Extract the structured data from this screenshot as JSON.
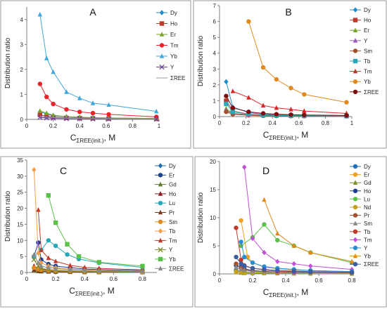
{
  "figure": {
    "panels": [
      "A",
      "B",
      "C",
      "D"
    ]
  },
  "chart_data": [
    {
      "id": "A",
      "type": "line",
      "panel_label": "A",
      "xlabel_main": "C",
      "xlabel_sub": "ΣREE(init.)",
      "xlabel_unit": ", M",
      "ylabel": "Distribution ratio",
      "xlim": [
        0,
        1
      ],
      "ylim": [
        0,
        4.5
      ],
      "xticks": [
        "0",
        "0.2",
        "0.4",
        "0.6",
        "0.8",
        "1"
      ],
      "yticks": [
        "0",
        "1",
        "2",
        "3",
        "4"
      ],
      "x": [
        0.1,
        0.15,
        0.2,
        0.3,
        0.4,
        0.5,
        0.62,
        0.98
      ],
      "series": [
        {
          "name": "Dy",
          "color": "#1f8dc8",
          "marker": "diamond",
          "values": [
            0.3,
            0.22,
            0.15,
            0.1,
            0.08,
            0.06,
            0.05,
            0.03
          ]
        },
        {
          "name": "Ho",
          "color": "#c0392b",
          "marker": "square",
          "values": [
            0.18,
            0.13,
            0.09,
            0.06,
            0.05,
            0.04,
            0.03,
            0.02
          ]
        },
        {
          "name": "Er",
          "color": "#7aa329",
          "marker": "triangle",
          "values": [
            0.34,
            0.25,
            0.17,
            0.11,
            0.09,
            0.07,
            0.06,
            0.04
          ]
        },
        {
          "name": "Tm",
          "color": "#e8232a",
          "marker": "circle",
          "values": [
            1.42,
            0.9,
            0.62,
            0.4,
            0.3,
            0.25,
            0.2,
            0.1
          ]
        },
        {
          "name": "Yb",
          "color": "#3fa6d8",
          "marker": "triangle",
          "values": [
            4.2,
            2.45,
            1.9,
            1.1,
            0.85,
            0.65,
            0.58,
            0.32
          ]
        },
        {
          "name": "Y",
          "color": "#6a3fa0",
          "marker": "x",
          "values": [
            0.08,
            0.06,
            0.05,
            0.03,
            0.03,
            0.02,
            0.02,
            0.01
          ]
        },
        {
          "name": "ΣREE",
          "color": "#999999",
          "marker": "none",
          "values": [
            0.12,
            0.09,
            0.07,
            0.05,
            0.04,
            0.03,
            0.03,
            0.02
          ]
        }
      ]
    },
    {
      "id": "B",
      "type": "line",
      "panel_label": "B",
      "xlabel_main": "C",
      "xlabel_sub": "ΣREE(init.)",
      "xlabel_unit": ", M",
      "ylabel": "Distribution ratio",
      "xlim": [
        0,
        1
      ],
      "ylim": [
        0,
        7
      ],
      "xticks": [
        "0",
        "0.2",
        "0.4",
        "0.6",
        "0.8",
        "1"
      ],
      "yticks": [
        "0",
        "1",
        "2",
        "3",
        "4",
        "5",
        "6",
        "7"
      ],
      "series": [
        {
          "name": "Dy",
          "color": "#1f8dc8",
          "marker": "diamond",
          "x": [
            0.05,
            0.1,
            0.22,
            0.33,
            0.43,
            0.54,
            0.64,
            0.96
          ],
          "values": [
            2.2,
            0.6,
            0.25,
            0.15,
            0.12,
            0.1,
            0.08,
            0.05
          ]
        },
        {
          "name": "Ho",
          "color": "#c0392b",
          "marker": "square",
          "x": [
            0.05,
            0.1,
            0.22,
            0.33,
            0.43,
            0.54,
            0.64,
            0.96
          ],
          "values": [
            1.0,
            0.35,
            0.15,
            0.1,
            0.08,
            0.06,
            0.05,
            0.03
          ]
        },
        {
          "name": "Er",
          "color": "#7aa329",
          "marker": "triangle",
          "x": [
            0.05,
            0.1,
            0.22,
            0.33,
            0.43,
            0.54,
            0.64,
            0.96
          ],
          "values": [
            0.5,
            0.2,
            0.12,
            0.08,
            0.06,
            0.05,
            0.04,
            0.03
          ]
        },
        {
          "name": "Y",
          "color": "#9b59b6",
          "marker": "triangle",
          "x": [
            0.05,
            0.1,
            0.22,
            0.33,
            0.43,
            0.54,
            0.64,
            0.96
          ],
          "values": [
            0.4,
            0.18,
            0.1,
            0.07,
            0.05,
            0.04,
            0.03,
            0.02
          ]
        },
        {
          "name": "Sm",
          "color": "#a0522d",
          "marker": "circle",
          "x": [
            0.05,
            0.1,
            0.22,
            0.33,
            0.43,
            0.54,
            0.64,
            0.96
          ],
          "values": [
            0.3,
            0.15,
            0.08,
            0.05,
            0.04,
            0.03,
            0.03,
            0.02
          ]
        },
        {
          "name": "Tb",
          "color": "#2aa7b8",
          "marker": "square",
          "x": [
            0.05,
            0.1,
            0.22,
            0.33,
            0.43,
            0.54,
            0.64,
            0.96
          ],
          "values": [
            0.8,
            0.3,
            0.14,
            0.09,
            0.07,
            0.06,
            0.05,
            0.03
          ]
        },
        {
          "name": "Tm",
          "color": "#d62728",
          "marker": "triangle",
          "x": [
            0.1,
            0.22,
            0.33,
            0.43,
            0.54,
            0.64,
            0.96
          ],
          "values": [
            1.6,
            1.2,
            0.7,
            0.55,
            0.45,
            0.35,
            0.2
          ]
        },
        {
          "name": "Yb",
          "color": "#e08a1e",
          "marker": "circle",
          "x": [
            0.22,
            0.33,
            0.43,
            0.54,
            0.64,
            0.96
          ],
          "values": [
            6.0,
            3.1,
            2.35,
            1.8,
            1.4,
            0.9
          ]
        },
        {
          "name": "ΣREE",
          "color": "#7a1010",
          "marker": "circle",
          "x": [
            0.05,
            0.1,
            0.22,
            0.33,
            0.43,
            0.54,
            0.64,
            0.96
          ],
          "values": [
            1.3,
            0.55,
            0.3,
            0.2,
            0.15,
            0.12,
            0.1,
            0.07
          ]
        }
      ]
    },
    {
      "id": "C",
      "type": "line",
      "panel_label": "C",
      "xlabel_main": "C",
      "xlabel_sub": "ΣREE(init.)",
      "xlabel_unit": ", M",
      "ylabel": "Distribution ratio",
      "xlim": [
        0,
        0.9
      ],
      "ylim": [
        0,
        35
      ],
      "xticks": [
        "0",
        "0.2",
        "0.4",
        "0.6",
        "0.8"
      ],
      "yticks": [
        "0",
        "5",
        "10",
        "15",
        "20",
        "25",
        "30",
        "35"
      ],
      "series": [
        {
          "name": "Dy",
          "color": "#1f6fb5",
          "marker": "diamond",
          "x": [
            0.05,
            0.08,
            0.1,
            0.15,
            0.2,
            0.3,
            0.4,
            0.5,
            0.8
          ],
          "values": [
            1.2,
            0.9,
            0.7,
            0.5,
            0.4,
            0.3,
            0.25,
            0.2,
            0.15
          ]
        },
        {
          "name": "Er",
          "color": "#1f3f8f",
          "marker": "circle",
          "x": [
            0.05,
            0.08,
            0.1,
            0.15,
            0.2,
            0.3,
            0.4,
            0.5,
            0.8
          ],
          "values": [
            5.0,
            9.3,
            4.0,
            2.6,
            2.0,
            1.5,
            1.1,
            0.9,
            0.6
          ]
        },
        {
          "name": "Gd",
          "color": "#5a7b2a",
          "marker": "triangle",
          "x": [
            0.05,
            0.08,
            0.1,
            0.15,
            0.2,
            0.3,
            0.4,
            0.5,
            0.8
          ],
          "values": [
            0.6,
            0.4,
            0.3,
            0.25,
            0.2,
            0.15,
            0.12,
            0.1,
            0.08
          ]
        },
        {
          "name": "Ho",
          "color": "#8b1a1a",
          "marker": "triangle",
          "x": [
            0.05,
            0.08,
            0.1,
            0.15,
            0.2,
            0.3,
            0.4,
            0.5,
            0.8
          ],
          "values": [
            2.0,
            1.4,
            1.0,
            0.8,
            0.6,
            0.5,
            0.4,
            0.3,
            0.2
          ]
        },
        {
          "name": "Lu",
          "color": "#2aa7b8",
          "marker": "circle",
          "x": [
            0.05,
            0.1,
            0.15,
            0.2,
            0.28,
            0.36,
            0.5,
            0.8
          ],
          "values": [
            5.0,
            7.0,
            10.0,
            8.3,
            5.6,
            4.2,
            3.0,
            1.6
          ]
        },
        {
          "name": "Pr",
          "color": "#7a3b1a",
          "marker": "triangle",
          "x": [
            0.05,
            0.08,
            0.1,
            0.15,
            0.2,
            0.3,
            0.4,
            0.5,
            0.8
          ],
          "values": [
            0.8,
            0.5,
            0.4,
            0.3,
            0.25,
            0.2,
            0.15,
            0.12,
            0.1
          ]
        },
        {
          "name": "Sm",
          "color": "#e08a1e",
          "marker": "circle",
          "x": [
            0.05,
            0.08,
            0.1,
            0.15,
            0.2,
            0.3,
            0.4,
            0.5,
            0.8
          ],
          "values": [
            1.5,
            1.0,
            0.8,
            0.6,
            0.5,
            0.4,
            0.3,
            0.25,
            0.2
          ]
        },
        {
          "name": "Tb",
          "color": "#f0a050",
          "marker": "diamond",
          "x": [
            0.05,
            0.08,
            0.1,
            0.15,
            0.2,
            0.3,
            0.4,
            0.5,
            0.8
          ],
          "values": [
            32.0,
            6.0,
            3.0,
            2.0,
            1.5,
            1.0,
            0.8,
            0.7,
            0.5
          ]
        },
        {
          "name": "Tm",
          "color": "#c0392b",
          "marker": "triangle",
          "x": [
            0.08,
            0.1,
            0.15,
            0.2,
            0.3,
            0.4,
            0.5,
            0.8
          ],
          "values": [
            19.5,
            7.0,
            4.5,
            3.5,
            2.2,
            1.6,
            1.3,
            0.8
          ]
        },
        {
          "name": "Y",
          "color": "#7a8f2a",
          "marker": "x",
          "x": [
            0.05,
            0.08,
            0.1,
            0.15,
            0.2,
            0.3,
            0.4,
            0.5,
            0.8
          ],
          "values": [
            4.0,
            2.0,
            1.3,
            0.9,
            0.7,
            0.5,
            0.4,
            0.3,
            0.25
          ]
        },
        {
          "name": "Yb",
          "color": "#5cbf4a",
          "marker": "square",
          "x": [
            0.15,
            0.2,
            0.28,
            0.36,
            0.5,
            0.8
          ],
          "values": [
            24.0,
            15.5,
            8.8,
            5.0,
            3.2,
            2.0
          ]
        },
        {
          "name": "ΣREE",
          "color": "#8a8a8a",
          "marker": "triangle",
          "x": [
            0.05,
            0.08,
            0.1,
            0.15,
            0.2,
            0.3,
            0.4,
            0.5,
            0.8
          ],
          "values": [
            5.5,
            3.0,
            2.0,
            1.5,
            1.2,
            0.9,
            0.7,
            0.6,
            0.4
          ]
        }
      ]
    },
    {
      "id": "D",
      "type": "line",
      "panel_label": "D",
      "xlabel_main": "C",
      "xlabel_sub": "ΣREE(init.)",
      "xlabel_unit": ", M",
      "ylabel": "Distribution ratio",
      "xlim": [
        0,
        0.8
      ],
      "ylim": [
        0,
        20
      ],
      "xticks": [
        "0",
        "0.2",
        "0.4",
        "0.6",
        "0.8"
      ],
      "yticks": [
        "0",
        "5",
        "10",
        "15",
        "20"
      ],
      "series": [
        {
          "name": "Dy",
          "color": "#1f6fb5",
          "marker": "circle",
          "x": [
            0.1,
            0.13,
            0.15,
            0.2,
            0.27,
            0.35,
            0.45,
            0.55,
            0.8
          ],
          "values": [
            0.6,
            0.4,
            0.3,
            0.25,
            0.2,
            0.15,
            0.12,
            0.1,
            0.08
          ]
        },
        {
          "name": "Er",
          "color": "#f0a020",
          "marker": "circle",
          "x": [
            0.13,
            0.17,
            0.2,
            0.27,
            0.35,
            0.45,
            0.55,
            0.8
          ],
          "values": [
            9.5,
            3.0,
            2.0,
            1.2,
            0.9,
            0.7,
            0.6,
            0.4
          ]
        },
        {
          "name": "Gd",
          "color": "#7a8f2a",
          "marker": "triangle",
          "x": [
            0.1,
            0.13,
            0.15,
            0.2,
            0.27,
            0.35,
            0.45,
            0.55,
            0.8
          ],
          "values": [
            0.3,
            0.2,
            0.15,
            0.12,
            0.1,
            0.08,
            0.06,
            0.05,
            0.04
          ]
        },
        {
          "name": "Ho",
          "color": "#1f3f8f",
          "marker": "circle",
          "x": [
            0.1,
            0.13,
            0.15,
            0.2,
            0.27,
            0.35,
            0.45,
            0.55,
            0.8
          ],
          "values": [
            1.5,
            1.2,
            0.9,
            0.6,
            0.45,
            0.35,
            0.3,
            0.25,
            0.15
          ]
        },
        {
          "name": "Lu",
          "color": "#5cbf4a",
          "marker": "circle",
          "x": [
            0.13,
            0.2,
            0.27,
            0.35,
            0.45,
            0.55,
            0.8
          ],
          "values": [
            5.0,
            6.5,
            8.8,
            6.0,
            5.0,
            3.8,
            2.0
          ]
        },
        {
          "name": "Nd",
          "color": "#c8a020",
          "marker": "circle",
          "x": [
            0.1,
            0.13,
            0.15,
            0.2,
            0.27,
            0.35,
            0.45,
            0.55,
            0.8
          ],
          "values": [
            0.4,
            0.3,
            0.25,
            0.2,
            0.15,
            0.12,
            0.1,
            0.08,
            0.06
          ]
        },
        {
          "name": "Pr",
          "color": "#a0522d",
          "marker": "circle",
          "x": [
            0.1,
            0.13,
            0.15,
            0.2,
            0.27,
            0.35,
            0.45,
            0.55,
            0.8
          ],
          "values": [
            1.8,
            1.0,
            0.7,
            0.5,
            0.4,
            0.3,
            0.25,
            0.2,
            0.15
          ]
        },
        {
          "name": "Sm",
          "color": "#8a8a8a",
          "marker": "triangle",
          "x": [
            0.1,
            0.13,
            0.15,
            0.2,
            0.27,
            0.35,
            0.45,
            0.55,
            0.8
          ],
          "values": [
            1.2,
            0.8,
            0.6,
            0.45,
            0.35,
            0.3,
            0.25,
            0.2,
            0.15
          ]
        },
        {
          "name": "Tb",
          "color": "#c0392b",
          "marker": "circle",
          "x": [
            0.1,
            0.13,
            0.15,
            0.2,
            0.27,
            0.35,
            0.45,
            0.55,
            0.8
          ],
          "values": [
            8.2,
            2.5,
            1.5,
            1.0,
            0.7,
            0.5,
            0.4,
            0.35,
            0.25
          ]
        },
        {
          "name": "Tm",
          "color": "#c24fd6",
          "marker": "diamond",
          "x": [
            0.15,
            0.2,
            0.27,
            0.35,
            0.45,
            0.55,
            0.8
          ],
          "values": [
            19.0,
            6.3,
            3.8,
            2.2,
            1.8,
            1.4,
            0.8
          ]
        },
        {
          "name": "Y",
          "color": "#2a8fd0",
          "marker": "circle",
          "x": [
            0.13,
            0.15,
            0.2,
            0.27,
            0.35,
            0.45,
            0.55,
            0.8
          ],
          "values": [
            5.7,
            3.0,
            2.0,
            1.3,
            1.0,
            0.8,
            0.6,
            0.4
          ]
        },
        {
          "name": "Yb",
          "color": "#e08a1e",
          "marker": "triangle",
          "x": [
            0.27,
            0.35,
            0.45,
            0.55,
            0.8
          ],
          "values": [
            13.2,
            7.2,
            5.0,
            3.8,
            2.2
          ]
        },
        {
          "name": "ΣREE",
          "color": "#3a5fa0",
          "marker": "circle",
          "x": [
            0.1,
            0.13,
            0.15,
            0.2,
            0.27,
            0.35,
            0.45,
            0.55,
            0.8
          ],
          "values": [
            3.0,
            1.8,
            1.4,
            1.0,
            0.8,
            0.6,
            0.5,
            0.4,
            0.3
          ]
        }
      ]
    }
  ]
}
